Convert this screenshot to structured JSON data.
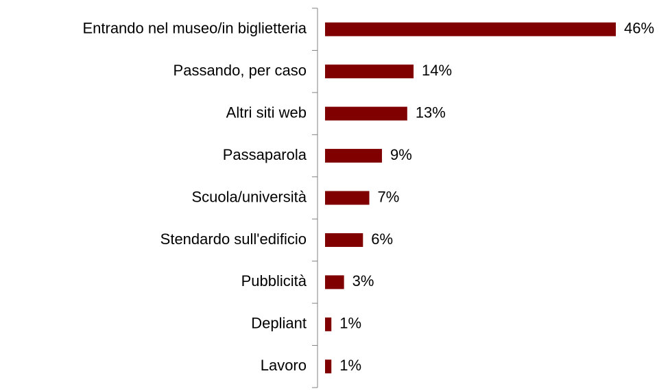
{
  "chart_data": {
    "type": "bar",
    "orientation": "horizontal",
    "categories": [
      "Entrando nel museo/in biglietteria",
      "Passando, per caso",
      "Altri siti web",
      "Passaparola",
      "Scuola/università",
      "Stendardo sull'edificio",
      "Pubblicità",
      "Depliant",
      "Lavoro"
    ],
    "values": [
      46,
      14,
      13,
      9,
      7,
      6,
      3,
      1,
      1
    ],
    "value_labels": [
      "46%",
      "14%",
      "13%",
      "9%",
      "7%",
      "6%",
      "3%",
      "1%",
      "1%"
    ],
    "color": "#800000"
  }
}
